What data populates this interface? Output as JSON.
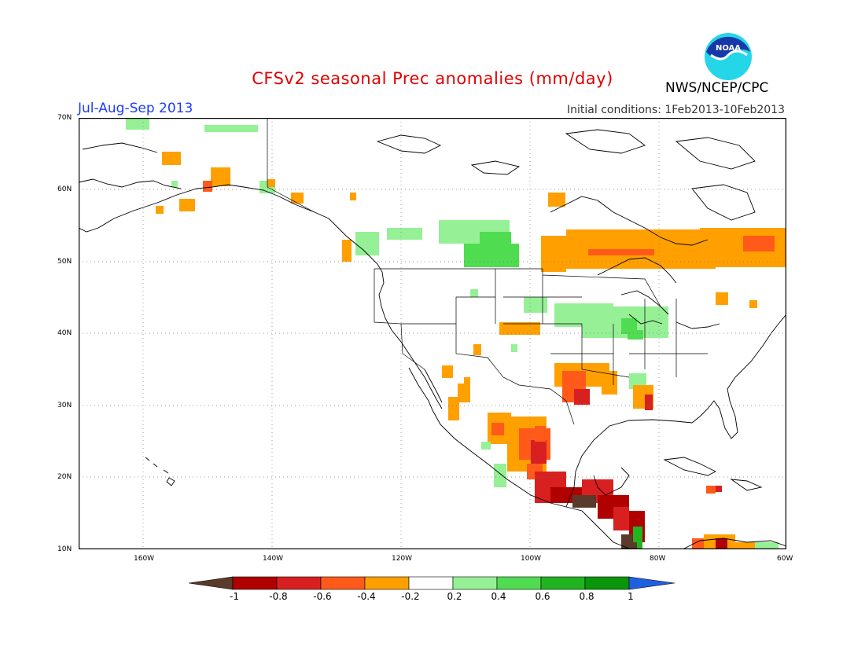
{
  "header": {
    "title": "CFSv2 seasonal Prec anomalies (mm/day)",
    "organization": "NWS/NCEP/CPC",
    "period": "Jul-Aug-Sep 2013",
    "initial_conditions": "Initial conditions: 1Feb2013-10Feb2013",
    "logo_text": "NOAA"
  },
  "axes": {
    "lat_labels": [
      "70N",
      "60N",
      "50N",
      "40N",
      "30N",
      "20N",
      "10N"
    ],
    "lon_labels": [
      "160W",
      "140W",
      "120W",
      "100W",
      "80W",
      "60W"
    ]
  },
  "colorbar": {
    "labels": [
      "-1",
      "-0.8",
      "-0.6",
      "-0.4",
      "-0.2",
      "0.2",
      "0.4",
      "0.6",
      "0.8",
      "1"
    ],
    "colors": [
      "#5a3a2a",
      "#b00000",
      "#d82020",
      "#ff5a1a",
      "#ffa000",
      "#ffffff",
      "#96f096",
      "#50dc50",
      "#20b420",
      "#0a960a",
      "#2060e0"
    ]
  },
  "map_data": {
    "lon_range": [
      -170,
      -60
    ],
    "lat_range": [
      10,
      70
    ],
    "legend_colors": {
      "dry_strong": "#5a3a2a",
      "dry_very": "#b00000",
      "dry": "#d82020",
      "dry_mod": "#ff5a1a",
      "dry_light": "#ffa000",
      "wet_light": "#96f096",
      "wet_mod": "#50dc50",
      "wet": "#20b420"
    }
  }
}
